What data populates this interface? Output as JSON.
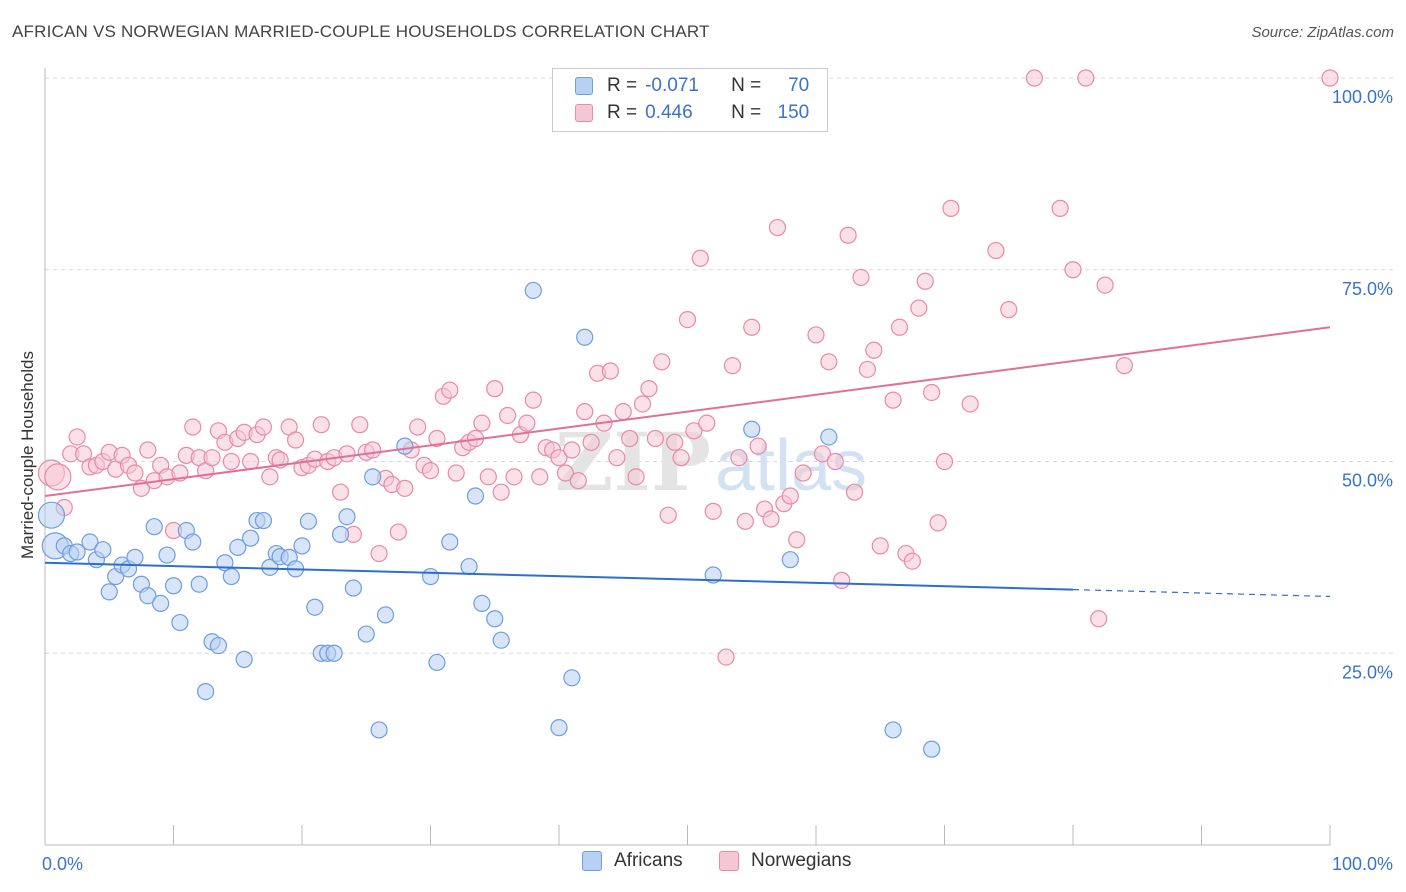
{
  "title": "AFRICAN VS NORWEGIAN MARRIED-COUPLE HOUSEHOLDS CORRELATION CHART",
  "source": "Source: ZipAtlas.com",
  "legend": {
    "row1": {
      "r_label": "R =",
      "r_value": "-0.071",
      "n_label": "N =",
      "n_value": "70"
    },
    "row2": {
      "r_label": "R =",
      "r_value": "0.446",
      "n_label": "N =",
      "n_value": "150"
    }
  },
  "colors": {
    "africans": "#6e9de0",
    "africans_fill": "#b8d0f2",
    "norwegians": "#e88aa8",
    "norwegians_fill": "#f5c6d4",
    "africans_line": "#2f6fcc",
    "norwegians_line": "#e07098",
    "axis_text": "#3a73c9"
  },
  "chart_data": {
    "type": "scatter",
    "title": "AFRICAN VS NORWEGIAN MARRIED-COUPLE HOUSEHOLDS CORRELATION CHART",
    "xlabel": "",
    "ylabel": "Married-couple Households",
    "xlim": [
      0,
      100
    ],
    "ylim": [
      0,
      100
    ],
    "x_tick_labels": [
      "0.0%",
      "100.0%"
    ],
    "y_tick_labels": [
      "25.0%",
      "50.0%",
      "75.0%",
      "100.0%"
    ],
    "y_ticks": [
      25,
      50,
      75,
      100
    ],
    "grid": true,
    "legend_position": "bottom",
    "watermark": "ZIPatlas",
    "series": [
      {
        "name": "Africans",
        "r": -0.071,
        "n": 70,
        "trend": {
          "x0": 0,
          "y0": 36.8,
          "x1": 80,
          "y1": 33.3,
          "dashed_to_x": 100,
          "dashed_to_y": 32.4
        },
        "points": [
          [
            0.5,
            43
          ],
          [
            0.8,
            39
          ],
          [
            1.5,
            39
          ],
          [
            2,
            38
          ],
          [
            2.5,
            38.2
          ],
          [
            3.5,
            39.5
          ],
          [
            4,
            37.2
          ],
          [
            4.5,
            38.5
          ],
          [
            5,
            33
          ],
          [
            5.5,
            35
          ],
          [
            6,
            36.5
          ],
          [
            6.5,
            36
          ],
          [
            7,
            37.5
          ],
          [
            7.5,
            34
          ],
          [
            8,
            32.5
          ],
          [
            8.5,
            41.5
          ],
          [
            9,
            31.5
          ],
          [
            9.5,
            37.8
          ],
          [
            10,
            33.8
          ],
          [
            10.5,
            29
          ],
          [
            11,
            41
          ],
          [
            11.5,
            39.5
          ],
          [
            12,
            34
          ],
          [
            12.5,
            20
          ],
          [
            13,
            26.5
          ],
          [
            13.5,
            26
          ],
          [
            14,
            36.8
          ],
          [
            14.5,
            35
          ],
          [
            15,
            38.8
          ],
          [
            15.5,
            24.2
          ],
          [
            16,
            40
          ],
          [
            16.5,
            42.3
          ],
          [
            17,
            42.3
          ],
          [
            17.5,
            36.2
          ],
          [
            18,
            38
          ],
          [
            18.3,
            37.6
          ],
          [
            19,
            37.5
          ],
          [
            19.5,
            36
          ],
          [
            20,
            39
          ],
          [
            20.5,
            42.2
          ],
          [
            21,
            31
          ],
          [
            21.5,
            25
          ],
          [
            22,
            25
          ],
          [
            22.5,
            25
          ],
          [
            23,
            40.5
          ],
          [
            23.5,
            42.8
          ],
          [
            24,
            33.5
          ],
          [
            25,
            27.5
          ],
          [
            25.5,
            48
          ],
          [
            26,
            15
          ],
          [
            26.5,
            30
          ],
          [
            28,
            52
          ],
          [
            30,
            35
          ],
          [
            30.5,
            23.8
          ],
          [
            31.5,
            39.5
          ],
          [
            33,
            36.3
          ],
          [
            33.5,
            45.5
          ],
          [
            34,
            31.5
          ],
          [
            35,
            29.5
          ],
          [
            35.5,
            26.7
          ],
          [
            38,
            72.3
          ],
          [
            40,
            15.3
          ],
          [
            41,
            21.8
          ],
          [
            42,
            66.2
          ],
          [
            52,
            35.2
          ],
          [
            55,
            54.2
          ],
          [
            58,
            37.2
          ],
          [
            61,
            53.2
          ],
          [
            66,
            15
          ],
          [
            69,
            12.5
          ]
        ]
      },
      {
        "name": "Norwegians",
        "r": 0.446,
        "n": 150,
        "trend": {
          "x0": 0,
          "y0": 45.5,
          "x1": 100,
          "y1": 67.5
        },
        "points": [
          [
            0.5,
            48.5
          ],
          [
            1,
            48
          ],
          [
            1.5,
            44
          ],
          [
            2,
            51
          ],
          [
            2.5,
            53.2
          ],
          [
            3,
            51
          ],
          [
            3.5,
            49.3
          ],
          [
            4,
            49.5
          ],
          [
            4.5,
            50
          ],
          [
            5,
            51.2
          ],
          [
            5.5,
            49
          ],
          [
            6,
            50.8
          ],
          [
            6.5,
            49.5
          ],
          [
            7,
            48.5
          ],
          [
            7.5,
            46.5
          ],
          [
            8,
            51.5
          ],
          [
            8.5,
            47.5
          ],
          [
            9,
            49.5
          ],
          [
            9.5,
            48
          ],
          [
            10,
            41
          ],
          [
            10.5,
            48.5
          ],
          [
            11,
            50.8
          ],
          [
            11.5,
            54.5
          ],
          [
            12,
            50.5
          ],
          [
            12.5,
            48.8
          ],
          [
            13,
            50.5
          ],
          [
            13.5,
            54
          ],
          [
            14,
            52.5
          ],
          [
            14.5,
            50
          ],
          [
            15,
            53
          ],
          [
            15.5,
            53.8
          ],
          [
            16,
            50
          ],
          [
            16.5,
            53.5
          ],
          [
            17,
            54.5
          ],
          [
            17.5,
            48
          ],
          [
            18,
            50.5
          ],
          [
            18.3,
            50.2
          ],
          [
            19,
            54.5
          ],
          [
            19.5,
            52.8
          ],
          [
            20,
            49.2
          ],
          [
            20.5,
            49.5
          ],
          [
            21,
            50.3
          ],
          [
            21.5,
            54.8
          ],
          [
            22,
            50
          ],
          [
            22.5,
            50.5
          ],
          [
            23,
            46
          ],
          [
            23.5,
            51
          ],
          [
            24,
            40.5
          ],
          [
            24.5,
            54.8
          ],
          [
            25,
            51.2
          ],
          [
            25.5,
            51.5
          ],
          [
            26,
            38
          ],
          [
            26.5,
            47.8
          ],
          [
            27,
            47
          ],
          [
            27.5,
            40.8
          ],
          [
            28,
            46.5
          ],
          [
            28.5,
            51.5
          ],
          [
            29,
            54.5
          ],
          [
            29.5,
            49.5
          ],
          [
            30,
            48.8
          ],
          [
            30.5,
            53
          ],
          [
            31,
            58.5
          ],
          [
            31.5,
            59.3
          ],
          [
            32,
            48.5
          ],
          [
            32.5,
            51.8
          ],
          [
            33,
            52.5
          ],
          [
            33.5,
            53
          ],
          [
            34,
            55
          ],
          [
            34.5,
            48
          ],
          [
            35,
            59.5
          ],
          [
            35.5,
            46
          ],
          [
            36,
            56
          ],
          [
            36.5,
            48
          ],
          [
            37,
            53.5
          ],
          [
            37.5,
            55
          ],
          [
            38,
            58
          ],
          [
            38.5,
            48
          ],
          [
            39,
            51.8
          ],
          [
            39.5,
            51.5
          ],
          [
            40,
            50.5
          ],
          [
            40.5,
            48.5
          ],
          [
            41,
            51.5
          ],
          [
            41.5,
            47.5
          ],
          [
            42,
            56.5
          ],
          [
            42.5,
            52.5
          ],
          [
            43,
            61.5
          ],
          [
            43.5,
            55
          ],
          [
            44,
            61.8
          ],
          [
            44.5,
            50.5
          ],
          [
            45,
            56.5
          ],
          [
            45.5,
            53
          ],
          [
            46,
            48
          ],
          [
            46.5,
            57.5
          ],
          [
            47,
            59.5
          ],
          [
            47.5,
            53
          ],
          [
            48,
            63
          ],
          [
            48.5,
            43
          ],
          [
            49,
            52.5
          ],
          [
            49.5,
            50.5
          ],
          [
            50,
            68.5
          ],
          [
            50.5,
            54
          ],
          [
            51,
            76.5
          ],
          [
            51.5,
            55
          ],
          [
            52,
            43.5
          ],
          [
            53,
            24.5
          ],
          [
            53.5,
            62.5
          ],
          [
            54,
            50.5
          ],
          [
            54.5,
            42.2
          ],
          [
            55,
            67.5
          ],
          [
            55.5,
            52
          ],
          [
            56,
            43.8
          ],
          [
            56.5,
            42.5
          ],
          [
            57,
            80.5
          ],
          [
            57.5,
            44.5
          ],
          [
            58,
            45.5
          ],
          [
            58.5,
            39.8
          ],
          [
            59,
            48.5
          ],
          [
            60,
            66.5
          ],
          [
            60.5,
            51
          ],
          [
            61,
            63
          ],
          [
            61.5,
            50
          ],
          [
            62,
            34.5
          ],
          [
            62.5,
            79.5
          ],
          [
            63,
            46
          ],
          [
            63.5,
            74
          ],
          [
            64,
            62
          ],
          [
            64.5,
            64.5
          ],
          [
            65,
            39
          ],
          [
            66,
            58
          ],
          [
            66.5,
            67.5
          ],
          [
            67,
            38
          ],
          [
            67.5,
            37
          ],
          [
            68,
            70
          ],
          [
            68.5,
            73.5
          ],
          [
            69,
            59
          ],
          [
            69.5,
            42
          ],
          [
            70,
            50
          ],
          [
            70.5,
            83
          ],
          [
            72,
            57.5
          ],
          [
            74,
            77.5
          ],
          [
            75,
            69.8
          ],
          [
            77,
            100
          ],
          [
            79,
            83
          ],
          [
            80,
            75
          ],
          [
            81,
            100
          ],
          [
            82,
            29.5
          ],
          [
            82.5,
            73
          ],
          [
            84,
            62.5
          ],
          [
            100,
            100
          ]
        ]
      }
    ]
  },
  "bottom_legend": {
    "africans": "Africans",
    "norwegians": "Norwegians"
  },
  "axis": {
    "x_min_label": "0.0%",
    "x_max_label": "100.0%",
    "y_labels": [
      "100.0%",
      "75.0%",
      "50.0%",
      "25.0%"
    ]
  }
}
